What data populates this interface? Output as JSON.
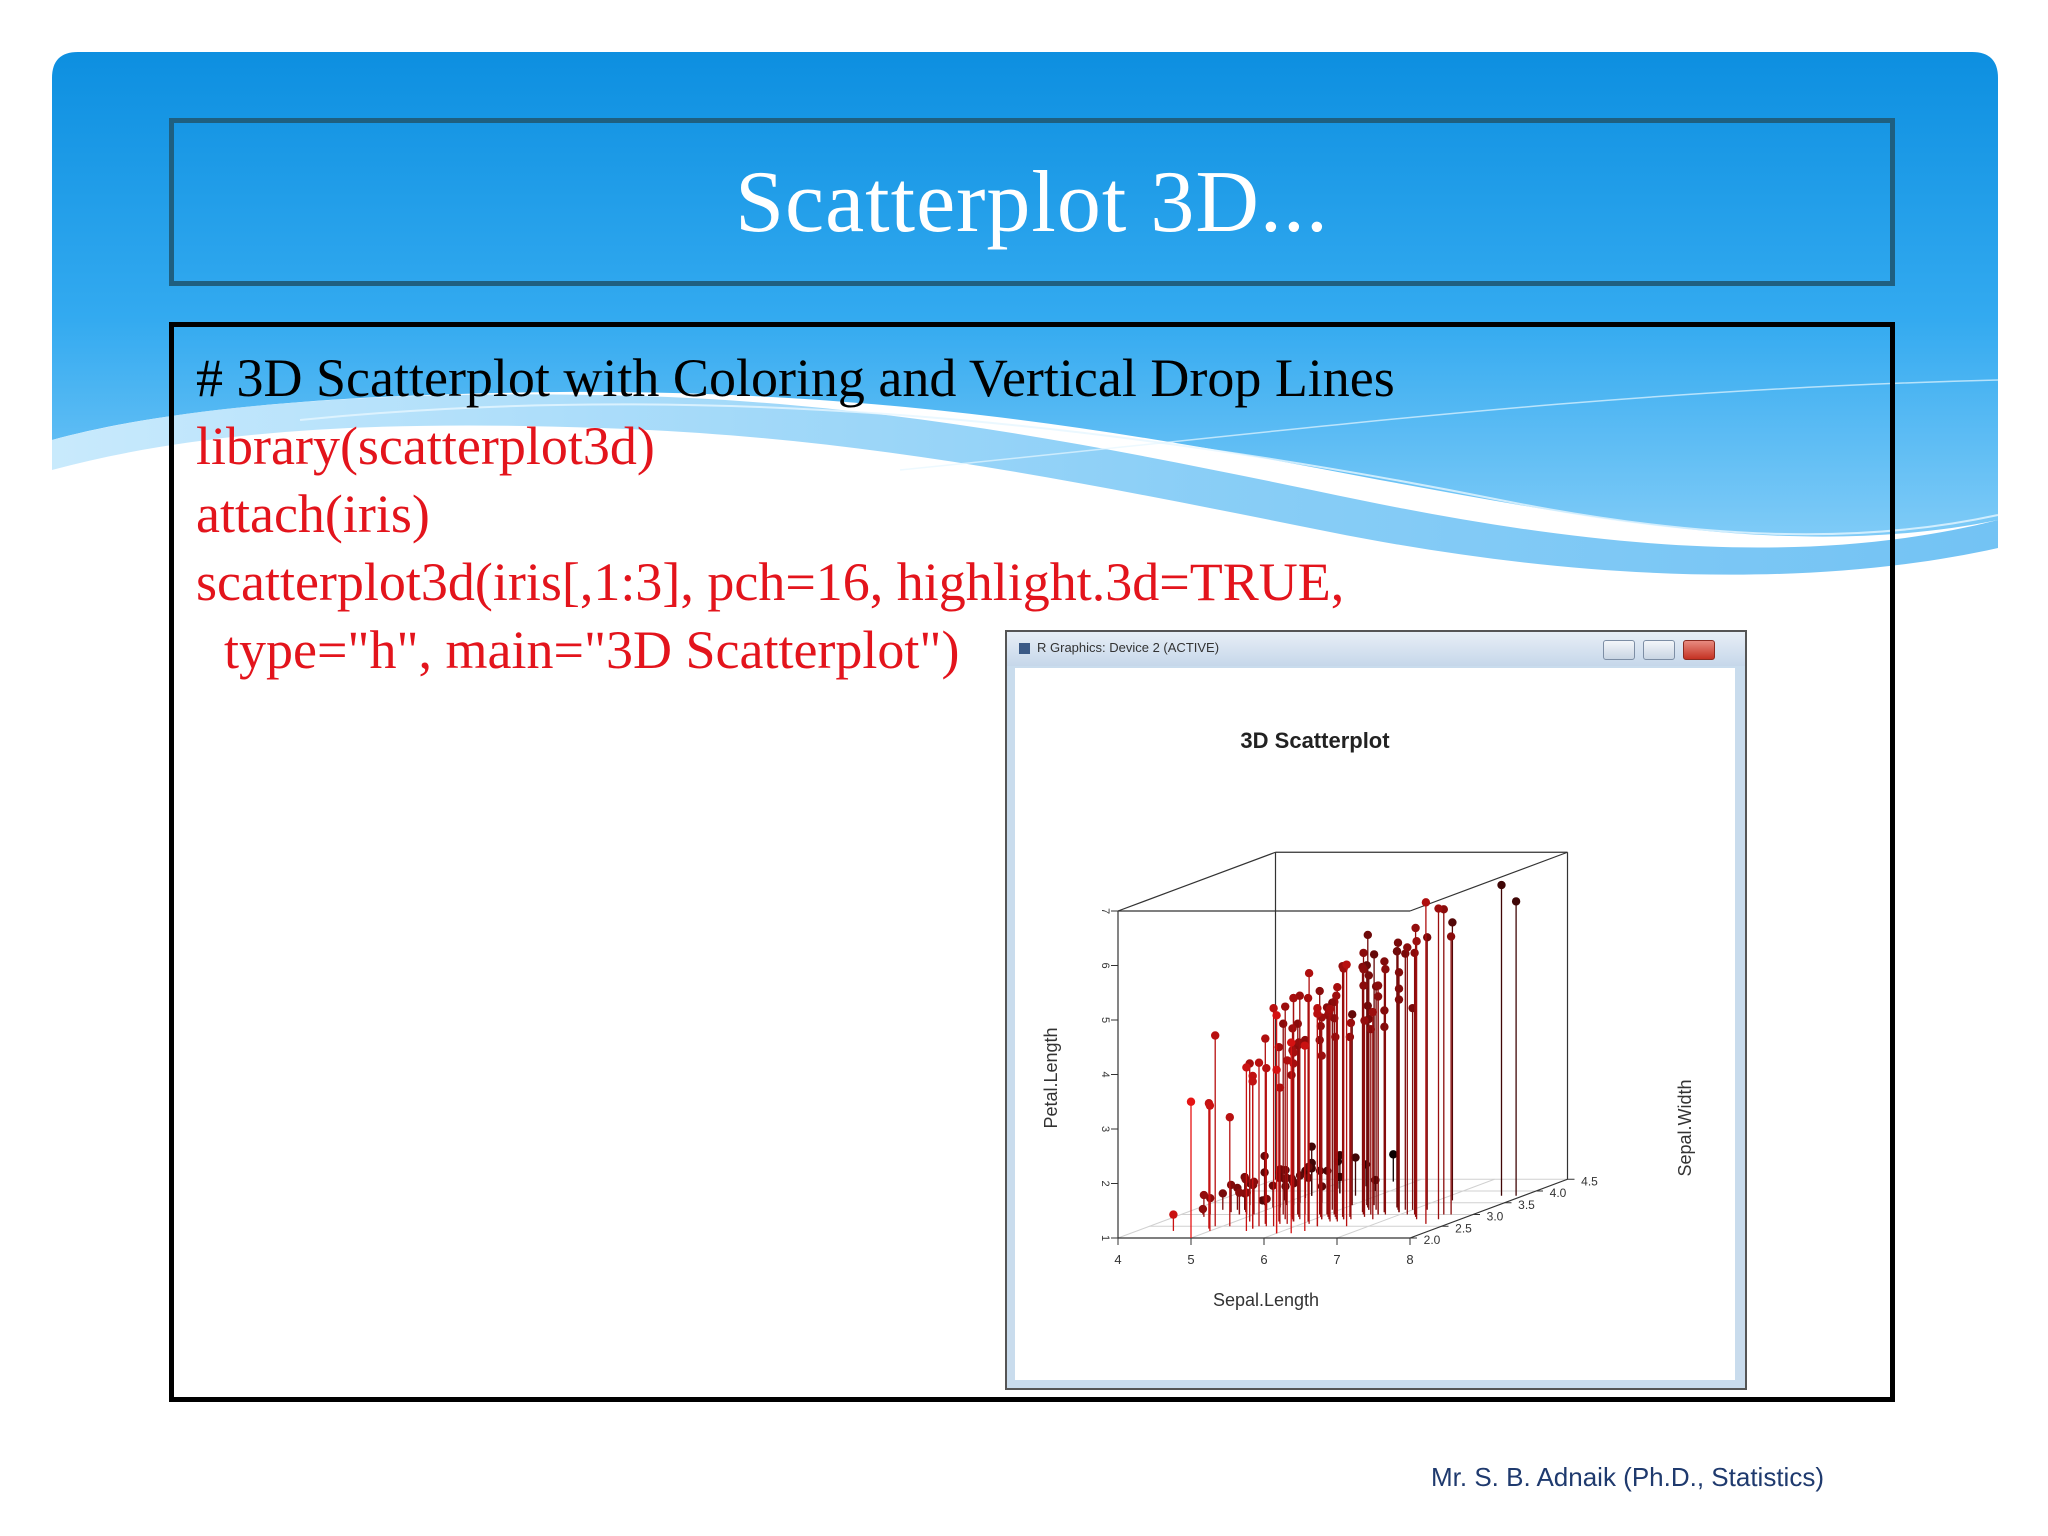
{
  "slide": {
    "title": "Scatterplot 3D...",
    "footer": "Mr. S. B. Adnaik (Ph.D., Statistics)",
    "colors": {
      "sky_top": "#1391dd",
      "sky_light": "#9bd6f9",
      "title_border": "#1f5f80",
      "code_red": "#e3141c"
    }
  },
  "code": {
    "comment": "# 3D Scatterplot with Coloring and Vertical Drop Lines",
    "line1": "library(scatterplot3d)",
    "line2": "attach(iris)",
    "line3": "scatterplot3d(iris[,1:3], pch=16, highlight.3d=TRUE,",
    "line4": "type=\"h\", main=\"3D Scatterplot\")"
  },
  "rwindow": {
    "title": "R Graphics: Device 2 (ACTIVE)",
    "app_icon": "r-window-icon",
    "controls": [
      "minimize-icon",
      "maximize-icon",
      "close-icon"
    ]
  },
  "chart_data": {
    "type": "scatter",
    "subtype": "3d-scatter-with-drop-lines",
    "title": "3D Scatterplot",
    "xlabel": "Sepal.Length",
    "ylabel": "Sepal.Width",
    "zlabel": "Petal.Length",
    "x_ticks": [
      "4",
      "5",
      "6",
      "7",
      "8"
    ],
    "y_ticks": [
      "2.0",
      "2.5",
      "3.0",
      "3.5",
      "4.0",
      "4.5"
    ],
    "z_ticks": [
      "1",
      "2",
      "3",
      "4",
      "5",
      "6",
      "7"
    ],
    "xlim": [
      4,
      8
    ],
    "ylim": [
      2,
      4.5
    ],
    "zlim": [
      1,
      7
    ],
    "grid": true,
    "color_scheme": "highlight.3d: red (front) to black (back)",
    "points": [
      [
        5.1,
        3.5,
        1.4
      ],
      [
        4.9,
        3.0,
        1.4
      ],
      [
        4.7,
        3.2,
        1.3
      ],
      [
        4.6,
        3.1,
        1.5
      ],
      [
        5.0,
        3.6,
        1.4
      ],
      [
        5.4,
        3.9,
        1.7
      ],
      [
        4.6,
        3.4,
        1.4
      ],
      [
        5.0,
        3.4,
        1.5
      ],
      [
        4.4,
        2.9,
        1.4
      ],
      [
        4.9,
        3.1,
        1.5
      ],
      [
        5.4,
        3.7,
        1.5
      ],
      [
        4.8,
        3.4,
        1.6
      ],
      [
        4.8,
        3.0,
        1.4
      ],
      [
        4.3,
        3.0,
        1.1
      ],
      [
        5.8,
        4.0,
        1.2
      ],
      [
        5.7,
        4.4,
        1.5
      ],
      [
        5.4,
        3.9,
        1.3
      ],
      [
        5.1,
        3.5,
        1.4
      ],
      [
        5.7,
        3.8,
        1.7
      ],
      [
        5.1,
        3.8,
        1.5
      ],
      [
        5.4,
        3.4,
        1.7
      ],
      [
        5.1,
        3.7,
        1.5
      ],
      [
        4.6,
        3.6,
        1.0
      ],
      [
        5.1,
        3.3,
        1.7
      ],
      [
        4.8,
        3.4,
        1.9
      ],
      [
        5.0,
        3.0,
        1.6
      ],
      [
        5.0,
        3.4,
        1.6
      ],
      [
        5.2,
        3.5,
        1.5
      ],
      [
        5.2,
        3.4,
        1.4
      ],
      [
        4.7,
        3.2,
        1.6
      ],
      [
        4.8,
        3.1,
        1.6
      ],
      [
        5.4,
        3.4,
        1.5
      ],
      [
        5.2,
        4.1,
        1.5
      ],
      [
        5.5,
        4.2,
        1.4
      ],
      [
        4.9,
        3.1,
        1.5
      ],
      [
        5.0,
        3.2,
        1.2
      ],
      [
        5.5,
        3.5,
        1.3
      ],
      [
        4.9,
        3.6,
        1.4
      ],
      [
        4.4,
        3.0,
        1.3
      ],
      [
        5.1,
        3.4,
        1.5
      ],
      [
        5.0,
        3.5,
        1.3
      ],
      [
        4.5,
        2.3,
        1.3
      ],
      [
        4.4,
        3.2,
        1.3
      ],
      [
        5.0,
        3.5,
        1.6
      ],
      [
        5.1,
        3.8,
        1.9
      ],
      [
        4.8,
        3.0,
        1.4
      ],
      [
        5.1,
        3.8,
        1.6
      ],
      [
        4.6,
        3.2,
        1.4
      ],
      [
        5.3,
        3.7,
        1.5
      ],
      [
        5.0,
        3.3,
        1.4
      ],
      [
        7.0,
        3.2,
        4.7
      ],
      [
        6.4,
        3.2,
        4.5
      ],
      [
        6.9,
        3.1,
        4.9
      ],
      [
        5.5,
        2.3,
        4.0
      ],
      [
        6.5,
        2.8,
        4.6
      ],
      [
        5.7,
        2.8,
        4.5
      ],
      [
        6.3,
        3.3,
        4.7
      ],
      [
        4.9,
        2.4,
        3.3
      ],
      [
        6.6,
        2.9,
        4.6
      ],
      [
        5.2,
        2.7,
        3.9
      ],
      [
        5.0,
        2.0,
        3.5
      ],
      [
        5.9,
        3.0,
        4.2
      ],
      [
        6.0,
        2.2,
        4.0
      ],
      [
        6.1,
        2.9,
        4.7
      ],
      [
        5.6,
        2.9,
        3.6
      ],
      [
        6.7,
        3.1,
        4.4
      ],
      [
        5.6,
        3.0,
        4.5
      ],
      [
        5.8,
        2.7,
        4.1
      ],
      [
        6.2,
        2.2,
        4.5
      ],
      [
        5.6,
        2.5,
        3.9
      ],
      [
        5.9,
        3.2,
        4.8
      ],
      [
        6.1,
        2.8,
        4.0
      ],
      [
        6.3,
        2.5,
        4.9
      ],
      [
        6.1,
        2.8,
        4.7
      ],
      [
        6.4,
        2.9,
        4.3
      ],
      [
        6.6,
        3.0,
        4.4
      ],
      [
        6.8,
        2.8,
        4.8
      ],
      [
        6.7,
        3.0,
        5.0
      ],
      [
        6.0,
        2.9,
        4.5
      ],
      [
        5.7,
        2.6,
        3.5
      ],
      [
        5.5,
        2.4,
        3.8
      ],
      [
        5.5,
        2.4,
        3.7
      ],
      [
        5.8,
        2.7,
        3.9
      ],
      [
        6.0,
        2.7,
        5.1
      ],
      [
        5.4,
        3.0,
        4.5
      ],
      [
        6.0,
        3.4,
        4.5
      ],
      [
        6.7,
        3.1,
        4.7
      ],
      [
        6.3,
        2.3,
        4.4
      ],
      [
        5.6,
        3.0,
        4.1
      ],
      [
        5.5,
        2.5,
        4.0
      ],
      [
        5.5,
        2.6,
        4.4
      ],
      [
        6.1,
        3.0,
        4.6
      ],
      [
        5.8,
        2.6,
        4.0
      ],
      [
        5.0,
        2.3,
        3.3
      ],
      [
        5.6,
        2.7,
        4.2
      ],
      [
        5.7,
        3.0,
        4.2
      ],
      [
        5.7,
        2.9,
        4.2
      ],
      [
        6.2,
        2.9,
        4.3
      ],
      [
        5.1,
        2.5,
        3.0
      ],
      [
        5.7,
        2.8,
        4.1
      ],
      [
        6.3,
        3.3,
        6.0
      ],
      [
        5.8,
        2.7,
        5.1
      ],
      [
        7.1,
        3.0,
        5.9
      ],
      [
        6.3,
        2.9,
        5.6
      ],
      [
        6.5,
        3.0,
        5.8
      ],
      [
        7.6,
        3.0,
        6.6
      ],
      [
        4.9,
        2.5,
        4.5
      ],
      [
        7.3,
        2.9,
        6.3
      ],
      [
        6.7,
        2.5,
        5.8
      ],
      [
        7.2,
        3.6,
        6.1
      ],
      [
        6.5,
        3.2,
        5.1
      ],
      [
        6.4,
        2.7,
        5.3
      ],
      [
        6.8,
        3.0,
        5.5
      ],
      [
        5.7,
        2.5,
        5.0
      ],
      [
        5.8,
        2.8,
        5.1
      ],
      [
        6.4,
        3.2,
        5.3
      ],
      [
        6.5,
        3.0,
        5.5
      ],
      [
        7.7,
        3.8,
        6.7
      ],
      [
        7.7,
        2.6,
        6.9
      ],
      [
        6.0,
        2.2,
        5.0
      ],
      [
        6.9,
        3.2,
        5.7
      ],
      [
        5.6,
        2.8,
        4.9
      ],
      [
        7.7,
        2.8,
        6.7
      ],
      [
        6.3,
        2.7,
        4.9
      ],
      [
        6.7,
        3.3,
        5.7
      ],
      [
        7.2,
        3.2,
        6.0
      ],
      [
        6.2,
        2.8,
        4.8
      ],
      [
        6.1,
        3.0,
        4.9
      ],
      [
        6.4,
        2.8,
        5.6
      ],
      [
        7.2,
        3.0,
        5.8
      ],
      [
        7.4,
        2.8,
        6.1
      ],
      [
        7.9,
        3.8,
        6.4
      ],
      [
        6.4,
        2.8,
        5.6
      ],
      [
        6.3,
        2.8,
        5.1
      ],
      [
        6.1,
        2.6,
        5.6
      ],
      [
        7.7,
        3.0,
        6.1
      ],
      [
        6.3,
        3.4,
        5.6
      ],
      [
        6.4,
        3.1,
        5.5
      ],
      [
        6.0,
        3.0,
        4.8
      ],
      [
        6.9,
        3.1,
        5.4
      ],
      [
        6.7,
        3.1,
        5.6
      ],
      [
        6.9,
        3.1,
        5.1
      ],
      [
        5.8,
        2.7,
        5.1
      ],
      [
        6.8,
        3.2,
        5.9
      ],
      [
        6.7,
        3.3,
        5.7
      ],
      [
        6.7,
        3.0,
        5.2
      ],
      [
        6.3,
        2.5,
        5.0
      ],
      [
        6.5,
        3.0,
        5.2
      ],
      [
        6.2,
        3.4,
        5.4
      ],
      [
        5.9,
        3.0,
        5.1
      ]
    ]
  }
}
